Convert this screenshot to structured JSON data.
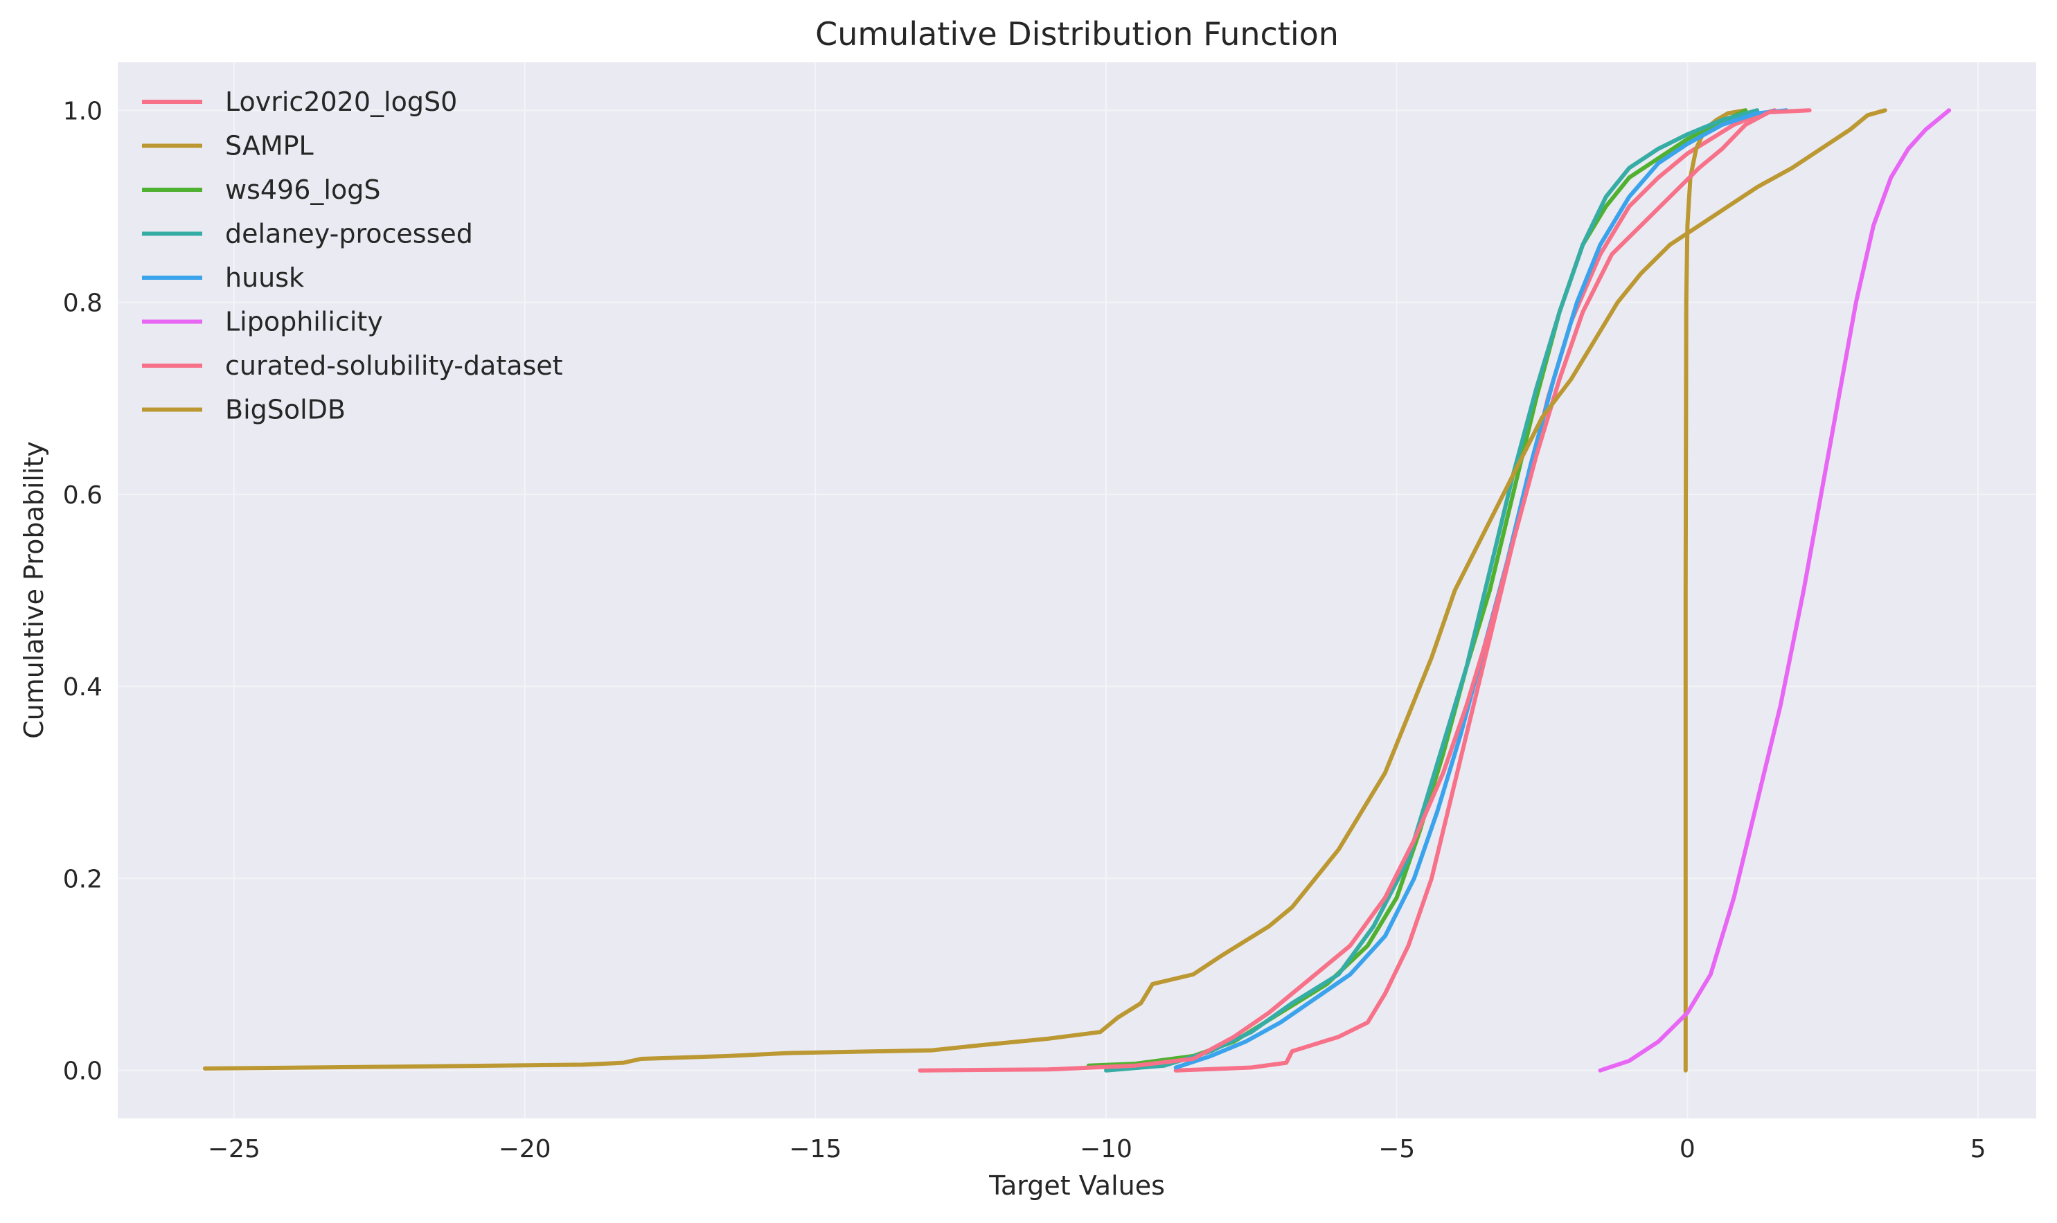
{
  "chart_data": {
    "type": "line",
    "title": "Cumulative Distribution Function",
    "xlabel": "Target Values",
    "ylabel": "Cumulative Probability",
    "xlim": [
      -27,
      6
    ],
    "ylim": [
      -0.05,
      1.05
    ],
    "xticks": [
      -25,
      -20,
      -15,
      -10,
      -5,
      0,
      5
    ],
    "xtick_labels": [
      "−25",
      "−20",
      "−15",
      "−10",
      "−5",
      "0",
      "5"
    ],
    "yticks": [
      0.0,
      0.2,
      0.4,
      0.6,
      0.8,
      1.0
    ],
    "ytick_labels": [
      "0.0",
      "0.2",
      "0.4",
      "0.6",
      "0.8",
      "1.0"
    ],
    "grid": true,
    "legend_position": "top-left",
    "background": "#eaeaf2",
    "series": [
      {
        "name": "Lovric2020_logS0",
        "color": "#f77189",
        "points": [
          [
            -8.8,
            0.0
          ],
          [
            -7.5,
            0.003
          ],
          [
            -6.9,
            0.008
          ],
          [
            -6.8,
            0.02
          ],
          [
            -6.0,
            0.035
          ],
          [
            -5.5,
            0.05
          ],
          [
            -5.2,
            0.08
          ],
          [
            -4.8,
            0.13
          ],
          [
            -4.4,
            0.2
          ],
          [
            -4.0,
            0.3
          ],
          [
            -3.6,
            0.4
          ],
          [
            -3.2,
            0.5
          ],
          [
            -2.8,
            0.6
          ],
          [
            -2.4,
            0.7
          ],
          [
            -2.0,
            0.78
          ],
          [
            -1.5,
            0.85
          ],
          [
            -1.0,
            0.9
          ],
          [
            -0.5,
            0.93
          ],
          [
            0.0,
            0.955
          ],
          [
            0.4,
            0.97
          ],
          [
            0.8,
            0.985
          ],
          [
            1.2,
            0.995
          ],
          [
            1.5,
            1.0
          ]
        ]
      },
      {
        "name": "SAMPL",
        "color": "#bb9832",
        "points": [
          [
            -0.03,
            0.0
          ],
          [
            -0.03,
            0.5
          ],
          [
            -0.02,
            0.8
          ],
          [
            0.0,
            0.88
          ],
          [
            0.05,
            0.93
          ],
          [
            0.15,
            0.96
          ],
          [
            0.3,
            0.98
          ],
          [
            0.5,
            0.99
          ],
          [
            0.7,
            0.997
          ],
          [
            1.0,
            1.0
          ]
        ]
      },
      {
        "name": "ws496_logS",
        "color": "#50b131",
        "points": [
          [
            -10.3,
            0.005
          ],
          [
            -9.5,
            0.007
          ],
          [
            -8.5,
            0.015
          ],
          [
            -7.8,
            0.03
          ],
          [
            -7.0,
            0.06
          ],
          [
            -6.2,
            0.09
          ],
          [
            -5.5,
            0.13
          ],
          [
            -5.0,
            0.18
          ],
          [
            -4.6,
            0.25
          ],
          [
            -4.2,
            0.33
          ],
          [
            -3.8,
            0.42
          ],
          [
            -3.4,
            0.5
          ],
          [
            -3.0,
            0.6
          ],
          [
            -2.6,
            0.7
          ],
          [
            -2.2,
            0.79
          ],
          [
            -1.8,
            0.86
          ],
          [
            -1.4,
            0.9
          ],
          [
            -1.0,
            0.93
          ],
          [
            -0.5,
            0.95
          ],
          [
            0.0,
            0.97
          ],
          [
            0.5,
            0.985
          ],
          [
            1.0,
            1.0
          ]
        ]
      },
      {
        "name": "delaney-processed",
        "color": "#36ada4",
        "points": [
          [
            -10.0,
            0.0
          ],
          [
            -9.0,
            0.005
          ],
          [
            -8.2,
            0.02
          ],
          [
            -7.5,
            0.04
          ],
          [
            -6.8,
            0.07
          ],
          [
            -6.0,
            0.1
          ],
          [
            -5.4,
            0.15
          ],
          [
            -4.8,
            0.22
          ],
          [
            -4.3,
            0.32
          ],
          [
            -3.8,
            0.42
          ],
          [
            -3.4,
            0.52
          ],
          [
            -3.0,
            0.62
          ],
          [
            -2.6,
            0.71
          ],
          [
            -2.2,
            0.79
          ],
          [
            -1.8,
            0.86
          ],
          [
            -1.4,
            0.91
          ],
          [
            -1.0,
            0.94
          ],
          [
            -0.5,
            0.96
          ],
          [
            0.0,
            0.975
          ],
          [
            0.6,
            0.99
          ],
          [
            1.2,
            1.0
          ]
        ]
      },
      {
        "name": "huusk",
        "color": "#3ba3ec",
        "points": [
          [
            -8.8,
            0.003
          ],
          [
            -8.2,
            0.015
          ],
          [
            -7.6,
            0.03
          ],
          [
            -7.0,
            0.05
          ],
          [
            -6.4,
            0.075
          ],
          [
            -5.8,
            0.1
          ],
          [
            -5.2,
            0.14
          ],
          [
            -4.7,
            0.2
          ],
          [
            -4.3,
            0.27
          ],
          [
            -3.9,
            0.35
          ],
          [
            -3.5,
            0.44
          ],
          [
            -3.1,
            0.53
          ],
          [
            -2.7,
            0.63
          ],
          [
            -2.3,
            0.72
          ],
          [
            -1.9,
            0.8
          ],
          [
            -1.5,
            0.86
          ],
          [
            -1.0,
            0.91
          ],
          [
            -0.5,
            0.945
          ],
          [
            0.0,
            0.965
          ],
          [
            0.6,
            0.985
          ],
          [
            1.2,
            0.997
          ],
          [
            1.7,
            1.0
          ]
        ]
      },
      {
        "name": "Lipophilicity",
        "color": "#e866f4",
        "points": [
          [
            -1.5,
            0.0
          ],
          [
            -1.0,
            0.01
          ],
          [
            -0.5,
            0.03
          ],
          [
            0.0,
            0.06
          ],
          [
            0.4,
            0.1
          ],
          [
            0.8,
            0.18
          ],
          [
            1.2,
            0.28
          ],
          [
            1.6,
            0.38
          ],
          [
            2.0,
            0.5
          ],
          [
            2.3,
            0.6
          ],
          [
            2.6,
            0.7
          ],
          [
            2.9,
            0.8
          ],
          [
            3.2,
            0.88
          ],
          [
            3.5,
            0.93
          ],
          [
            3.8,
            0.96
          ],
          [
            4.1,
            0.98
          ],
          [
            4.3,
            0.99
          ],
          [
            4.5,
            1.0
          ]
        ]
      },
      {
        "name": "curated-solubility-dataset",
        "color": "#f77189",
        "points": [
          [
            -13.2,
            0.0
          ],
          [
            -11.0,
            0.001
          ],
          [
            -9.5,
            0.005
          ],
          [
            -8.5,
            0.012
          ],
          [
            -7.8,
            0.035
          ],
          [
            -7.2,
            0.06
          ],
          [
            -6.5,
            0.095
          ],
          [
            -5.8,
            0.13
          ],
          [
            -5.2,
            0.18
          ],
          [
            -4.7,
            0.24
          ],
          [
            -4.2,
            0.31
          ],
          [
            -3.8,
            0.38
          ],
          [
            -3.4,
            0.46
          ],
          [
            -3.0,
            0.55
          ],
          [
            -2.6,
            0.64
          ],
          [
            -2.2,
            0.72
          ],
          [
            -1.8,
            0.79
          ],
          [
            -1.3,
            0.85
          ],
          [
            -0.8,
            0.88
          ],
          [
            -0.3,
            0.91
          ],
          [
            0.2,
            0.94
          ],
          [
            0.6,
            0.96
          ],
          [
            1.0,
            0.985
          ],
          [
            1.4,
            0.998
          ],
          [
            2.1,
            1.0
          ]
        ]
      },
      {
        "name": "BigSolDB",
        "color": "#bb9832",
        "points": [
          [
            -25.5,
            0.002
          ],
          [
            -22.0,
            0.004
          ],
          [
            -19.0,
            0.006
          ],
          [
            -18.3,
            0.008
          ],
          [
            -18.0,
            0.012
          ],
          [
            -16.5,
            0.015
          ],
          [
            -15.5,
            0.018
          ],
          [
            -13.0,
            0.021
          ],
          [
            -12.2,
            0.026
          ],
          [
            -11.0,
            0.033
          ],
          [
            -10.1,
            0.04
          ],
          [
            -9.8,
            0.055
          ],
          [
            -9.4,
            0.07
          ],
          [
            -9.2,
            0.09
          ],
          [
            -8.5,
            0.1
          ],
          [
            -8.0,
            0.12
          ],
          [
            -7.2,
            0.15
          ],
          [
            -6.8,
            0.17
          ],
          [
            -6.4,
            0.2
          ],
          [
            -6.0,
            0.23
          ],
          [
            -5.6,
            0.27
          ],
          [
            -5.2,
            0.31
          ],
          [
            -4.8,
            0.37
          ],
          [
            -4.4,
            0.43
          ],
          [
            -4.0,
            0.5
          ],
          [
            -3.5,
            0.56
          ],
          [
            -3.0,
            0.62
          ],
          [
            -2.5,
            0.68
          ],
          [
            -2.0,
            0.72
          ],
          [
            -1.6,
            0.76
          ],
          [
            -1.2,
            0.8
          ],
          [
            -0.8,
            0.83
          ],
          [
            -0.3,
            0.86
          ],
          [
            0.2,
            0.88
          ],
          [
            0.7,
            0.9
          ],
          [
            1.2,
            0.92
          ],
          [
            1.8,
            0.94
          ],
          [
            2.3,
            0.96
          ],
          [
            2.8,
            0.98
          ],
          [
            3.1,
            0.995
          ],
          [
            3.4,
            1.0
          ]
        ]
      }
    ]
  }
}
